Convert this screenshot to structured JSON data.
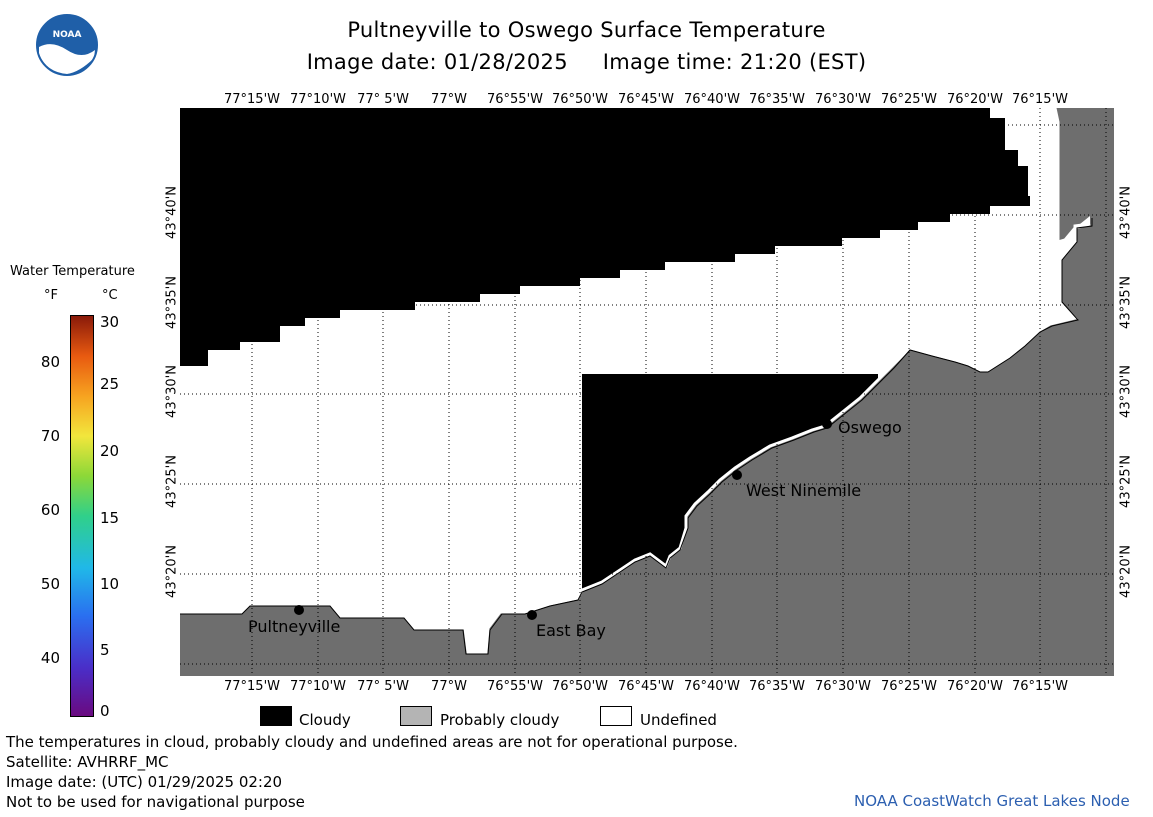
{
  "header": {
    "title": "Pultneyville to Oswego Surface Temperature",
    "image_date_label": "Image date: 01/28/2025",
    "image_time_label": "Image time: 21:20 (EST)"
  },
  "logo": {
    "text": "NOAA"
  },
  "map": {
    "lon_ticks": [
      "77°15'W",
      "77°10'W",
      "77° 5'W",
      "77°W",
      "76°55'W",
      "76°50'W",
      "76°45'W",
      "76°40'W",
      "76°35'W",
      "76°30'W",
      "76°25'W",
      "76°20'W",
      "76°15'W"
    ],
    "lat_ticks": [
      "43°40'N",
      "43°35'N",
      "43°30'N",
      "43°25'N",
      "43°20'N"
    ],
    "places": [
      {
        "name": "Pultneyville"
      },
      {
        "name": "East Bay"
      },
      {
        "name": "West Ninemile"
      },
      {
        "name": "Oswego"
      }
    ],
    "colors": {
      "cloudy": "#000000",
      "land": "#6e6e6e",
      "undefined": "#ffffff",
      "shore": "#ffffff"
    }
  },
  "color_scale": {
    "title": "Water Temperature",
    "unit_f": "°F",
    "unit_c": "°C",
    "f_values": [
      "80",
      "70",
      "60",
      "50",
      "40"
    ],
    "c_values": [
      "30",
      "25",
      "20",
      "15",
      "10",
      "5",
      "0"
    ]
  },
  "legend": {
    "cloudy": "Cloudy",
    "probably_cloudy": "Probably cloudy",
    "undefined": "Undefined",
    "colors": {
      "cloudy": "#000000",
      "probably_cloudy": "#b4b4b4",
      "undefined": "#ffffff"
    }
  },
  "notes": {
    "line1": "The temperatures in cloud, probably cloudy and undefined areas are not for operational purpose.",
    "line2": "Satellite: AVHRRF_MC",
    "line3": "Image date: (UTC) 01/29/2025  02:20",
    "line4": "Not to be used for navigational purpose"
  },
  "credit": "NOAA CoastWatch Great Lakes Node"
}
